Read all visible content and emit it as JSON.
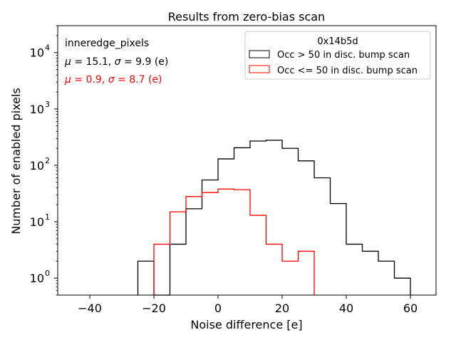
{
  "chart_data": {
    "type": "histogram-step",
    "title": "Results from zero-bias scan",
    "xlabel": "Noise difference [e]",
    "ylabel": "Number of enabled pixels",
    "xlim": [
      -50,
      68
    ],
    "ylim": [
      0.5,
      30000
    ],
    "yscale": "log",
    "xticks": [
      -40,
      -20,
      0,
      20,
      40,
      60
    ],
    "xtick_labels": [
      "−40",
      "−20",
      "0",
      "20",
      "40",
      "60"
    ],
    "yticks": [
      1,
      10,
      100,
      1000,
      10000
    ],
    "ytick_labels": [
      {
        "base": "10",
        "exp": "0"
      },
      {
        "base": "10",
        "exp": "1"
      },
      {
        "base": "10",
        "exp": "2"
      },
      {
        "base": "10",
        "exp": "3"
      },
      {
        "base": "10",
        "exp": "4"
      }
    ],
    "bin_width": 5,
    "legend": {
      "title": "0x14b5d",
      "location": "upper right",
      "entries": [
        "Occ > 50 in disc. bump scan",
        "Occ <= 50 in disc. bump scan"
      ]
    },
    "annotations": {
      "label": "inneredge_pixels",
      "stats": [
        {
          "mu_label": "μ",
          "mu": "15.1",
          "sigma_label": "σ",
          "sigma": "9.9",
          "unit": "(e)",
          "color": "#000000"
        },
        {
          "mu_label": "μ",
          "mu": "0.9",
          "sigma_label": "σ",
          "sigma": "8.7",
          "unit": "(e)",
          "color": "#ff0000"
        }
      ]
    },
    "series": [
      {
        "name": "Occ > 50 in disc. bump scan",
        "color": "#000000",
        "bin_edges": [
          -25,
          -20,
          -15,
          -10,
          -5,
          0,
          5,
          10,
          15,
          20,
          25,
          30,
          35,
          40,
          45,
          50,
          55,
          60
        ],
        "counts": [
          2,
          0,
          4,
          17,
          55,
          130,
          205,
          270,
          280,
          200,
          120,
          60,
          21,
          4,
          3,
          2,
          1
        ]
      },
      {
        "name": "Occ <= 50 in disc. bump scan",
        "color": "#ff0000",
        "bin_edges": [
          -20,
          -15,
          -10,
          -5,
          0,
          5,
          10,
          15,
          20,
          25,
          30
        ],
        "counts": [
          4,
          15,
          28,
          33,
          38,
          37,
          13,
          4,
          2,
          3
        ]
      }
    ]
  }
}
